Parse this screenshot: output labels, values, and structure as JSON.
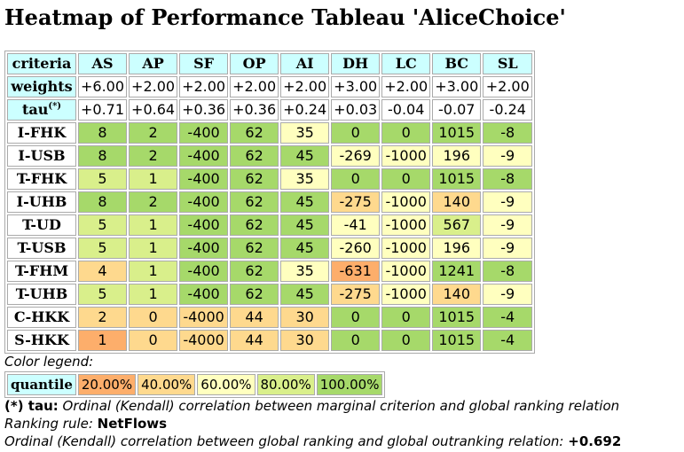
{
  "title": "Heatmap of Performance Tableau 'AliceChoice'",
  "colors": {
    "header_bg": "#ccffff",
    "q20": "#fdae6b",
    "q40": "#fed98e",
    "q60": "#ffffbf",
    "q80": "#d9ef8b",
    "q100": "#a6d96a"
  },
  "table": {
    "corner": "criteria",
    "criteria": [
      "AS",
      "AP",
      "SF",
      "OP",
      "AI",
      "DH",
      "LC",
      "BC",
      "SL"
    ],
    "weights_label": "weights",
    "weights": [
      "+6.00",
      "+2.00",
      "+2.00",
      "+2.00",
      "+2.00",
      "+3.00",
      "+2.00",
      "+3.00",
      "+2.00"
    ],
    "tau_label": "tau",
    "tau_sup": "(*)",
    "tau": [
      "+0.71",
      "+0.64",
      "+0.36",
      "+0.36",
      "+0.24",
      "+0.03",
      "-0.04",
      "-0.07",
      "-0.24"
    ],
    "rows": [
      {
        "name": "I-FHK",
        "cells": [
          {
            "v": "8",
            "q": "q100"
          },
          {
            "v": "2",
            "q": "q100"
          },
          {
            "v": "-400",
            "q": "q100"
          },
          {
            "v": "62",
            "q": "q100"
          },
          {
            "v": "35",
            "q": "q60"
          },
          {
            "v": "0",
            "q": "q100"
          },
          {
            "v": "0",
            "q": "q100"
          },
          {
            "v": "1015",
            "q": "q100"
          },
          {
            "v": "-8",
            "q": "q100"
          }
        ]
      },
      {
        "name": "I-USB",
        "cells": [
          {
            "v": "8",
            "q": "q100"
          },
          {
            "v": "2",
            "q": "q100"
          },
          {
            "v": "-400",
            "q": "q100"
          },
          {
            "v": "62",
            "q": "q100"
          },
          {
            "v": "45",
            "q": "q100"
          },
          {
            "v": "-269",
            "q": "q60"
          },
          {
            "v": "-1000",
            "q": "q60"
          },
          {
            "v": "196",
            "q": "q60"
          },
          {
            "v": "-9",
            "q": "q60"
          }
        ]
      },
      {
        "name": "T-FHK",
        "cells": [
          {
            "v": "5",
            "q": "q80"
          },
          {
            "v": "1",
            "q": "q80"
          },
          {
            "v": "-400",
            "q": "q100"
          },
          {
            "v": "62",
            "q": "q100"
          },
          {
            "v": "35",
            "q": "q60"
          },
          {
            "v": "0",
            "q": "q100"
          },
          {
            "v": "0",
            "q": "q100"
          },
          {
            "v": "1015",
            "q": "q100"
          },
          {
            "v": "-8",
            "q": "q100"
          }
        ]
      },
      {
        "name": "I-UHB",
        "cells": [
          {
            "v": "8",
            "q": "q100"
          },
          {
            "v": "2",
            "q": "q100"
          },
          {
            "v": "-400",
            "q": "q100"
          },
          {
            "v": "62",
            "q": "q100"
          },
          {
            "v": "45",
            "q": "q100"
          },
          {
            "v": "-275",
            "q": "q40"
          },
          {
            "v": "-1000",
            "q": "q60"
          },
          {
            "v": "140",
            "q": "q40"
          },
          {
            "v": "-9",
            "q": "q60"
          }
        ]
      },
      {
        "name": "T-UD",
        "cells": [
          {
            "v": "5",
            "q": "q80"
          },
          {
            "v": "1",
            "q": "q80"
          },
          {
            "v": "-400",
            "q": "q100"
          },
          {
            "v": "62",
            "q": "q100"
          },
          {
            "v": "45",
            "q": "q100"
          },
          {
            "v": "-41",
            "q": "q60"
          },
          {
            "v": "-1000",
            "q": "q60"
          },
          {
            "v": "567",
            "q": "q80"
          },
          {
            "v": "-9",
            "q": "q60"
          }
        ]
      },
      {
        "name": "T-USB",
        "cells": [
          {
            "v": "5",
            "q": "q80"
          },
          {
            "v": "1",
            "q": "q80"
          },
          {
            "v": "-400",
            "q": "q100"
          },
          {
            "v": "62",
            "q": "q100"
          },
          {
            "v": "45",
            "q": "q100"
          },
          {
            "v": "-260",
            "q": "q60"
          },
          {
            "v": "-1000",
            "q": "q60"
          },
          {
            "v": "196",
            "q": "q60"
          },
          {
            "v": "-9",
            "q": "q60"
          }
        ]
      },
      {
        "name": "T-FHM",
        "cells": [
          {
            "v": "4",
            "q": "q40"
          },
          {
            "v": "1",
            "q": "q80"
          },
          {
            "v": "-400",
            "q": "q100"
          },
          {
            "v": "62",
            "q": "q100"
          },
          {
            "v": "35",
            "q": "q60"
          },
          {
            "v": "-631",
            "q": "q20"
          },
          {
            "v": "-1000",
            "q": "q60"
          },
          {
            "v": "1241",
            "q": "q100"
          },
          {
            "v": "-8",
            "q": "q100"
          }
        ]
      },
      {
        "name": "T-UHB",
        "cells": [
          {
            "v": "5",
            "q": "q80"
          },
          {
            "v": "1",
            "q": "q80"
          },
          {
            "v": "-400",
            "q": "q100"
          },
          {
            "v": "62",
            "q": "q100"
          },
          {
            "v": "45",
            "q": "q100"
          },
          {
            "v": "-275",
            "q": "q40"
          },
          {
            "v": "-1000",
            "q": "q60"
          },
          {
            "v": "140",
            "q": "q40"
          },
          {
            "v": "-9",
            "q": "q60"
          }
        ]
      },
      {
        "name": "C-HKK",
        "cells": [
          {
            "v": "2",
            "q": "q40"
          },
          {
            "v": "0",
            "q": "q40"
          },
          {
            "v": "-4000",
            "q": "q40"
          },
          {
            "v": "44",
            "q": "q40"
          },
          {
            "v": "30",
            "q": "q40"
          },
          {
            "v": "0",
            "q": "q100"
          },
          {
            "v": "0",
            "q": "q100"
          },
          {
            "v": "1015",
            "q": "q100"
          },
          {
            "v": "-4",
            "q": "q100"
          }
        ]
      },
      {
        "name": "S-HKK",
        "cells": [
          {
            "v": "1",
            "q": "q20"
          },
          {
            "v": "0",
            "q": "q40"
          },
          {
            "v": "-4000",
            "q": "q40"
          },
          {
            "v": "44",
            "q": "q40"
          },
          {
            "v": "30",
            "q": "q40"
          },
          {
            "v": "0",
            "q": "q100"
          },
          {
            "v": "0",
            "q": "q100"
          },
          {
            "v": "1015",
            "q": "q100"
          },
          {
            "v": "-4",
            "q": "q100"
          }
        ]
      }
    ]
  },
  "legend": {
    "title": "Color legend:",
    "label": "quantile",
    "items": [
      {
        "text": "20.00%",
        "q": "q20"
      },
      {
        "text": "40.00%",
        "q": "q40"
      },
      {
        "text": "60.00%",
        "q": "q60"
      },
      {
        "text": "80.00%",
        "q": "q80"
      },
      {
        "text": "100.00%",
        "q": "q100"
      }
    ]
  },
  "notes": {
    "tau_key": "(*) tau:",
    "tau_text": " Ordinal (Kendall) correlation between marginal criterion and global ranking relation",
    "ranking_prefix": "Ranking rule: ",
    "ranking_rule": "NetFlows",
    "corr_text": "Ordinal (Kendall) correlation between global ranking and global outranking relation: ",
    "corr_value": "+0.692"
  }
}
